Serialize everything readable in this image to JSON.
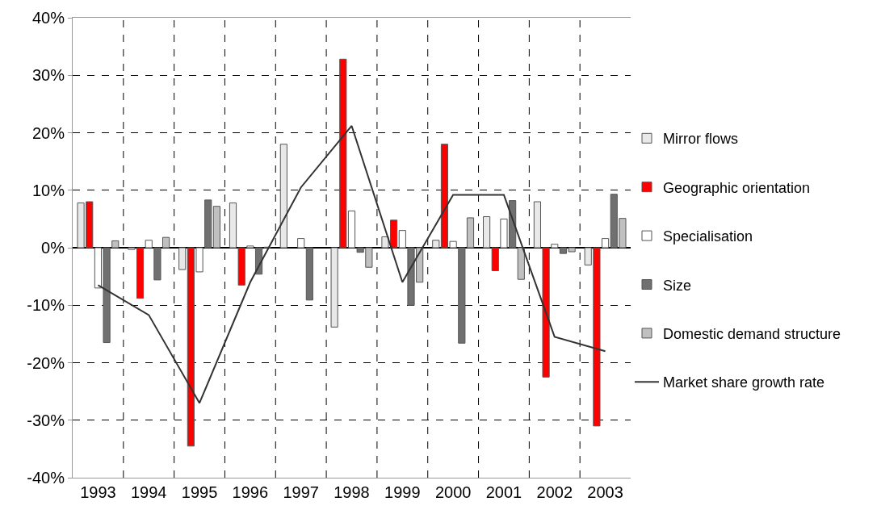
{
  "chart_data": {
    "type": "bar",
    "categories": [
      "1993",
      "1994",
      "1995",
      "1996",
      "1997",
      "1998",
      "1999",
      "2000",
      "2001",
      "2002",
      "2003"
    ],
    "series": [
      {
        "name": "Mirror flows",
        "color": "#e8e8e8",
        "values": [
          7.8,
          -0.3,
          -3.8,
          7.8,
          18,
          -13.8,
          1.9,
          1.3,
          5.4,
          8,
          -3
        ]
      },
      {
        "name": "Geographic orientation",
        "color": "#ff0000",
        "values": [
          8,
          -8.8,
          -34.5,
          -6.5,
          null,
          32.8,
          4.8,
          18,
          -4,
          -22.5,
          -31
        ]
      },
      {
        "name": "Specialisation",
        "color": "#ffffff",
        "values": [
          -7,
          1.3,
          -4.2,
          0.3,
          1.6,
          6.4,
          3,
          1.1,
          5,
          0.6,
          1.6
        ]
      },
      {
        "name": "Size",
        "color": "#707070",
        "values": [
          -16.5,
          -5.6,
          8.3,
          -4.6,
          -9.1,
          -0.8,
          -10,
          -16.6,
          8.2,
          -1,
          9.3
        ]
      },
      {
        "name": "Domestic demand structure",
        "color": "#c0c0c0",
        "values": [
          1.2,
          1.8,
          7.2,
          0.1,
          null,
          -3.4,
          -6,
          5.2,
          -5.5,
          -0.7,
          5.1
        ]
      },
      {
        "name": "Market share growth rate",
        "type": "line",
        "color": "#333333",
        "line_style": "solid",
        "values": [
          -6.5,
          -11.7,
          -27,
          -6,
          10.5,
          21.2,
          -6,
          9.2,
          9.2,
          -15.5,
          -18
        ]
      }
    ],
    "ylim": [
      -40,
      40
    ],
    "yticks": [
      {
        "value": -40,
        "label": "-40%"
      },
      {
        "value": -30,
        "label": "-30%"
      },
      {
        "value": -20,
        "label": "-20%"
      },
      {
        "value": -10,
        "label": "-10%"
      },
      {
        "value": 0,
        "label": "0%"
      },
      {
        "value": 10,
        "label": "10%"
      },
      {
        "value": 20,
        "label": "20%"
      },
      {
        "value": 30,
        "label": "30%"
      },
      {
        "value": 40,
        "label": "40%"
      }
    ],
    "grid": true,
    "legend": "right",
    "marker": "none"
  }
}
